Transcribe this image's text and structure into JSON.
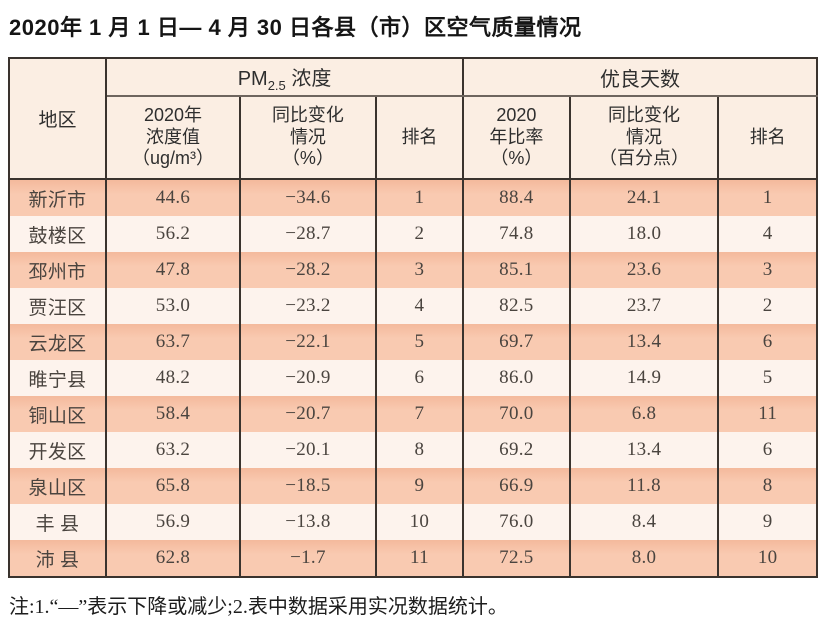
{
  "page": {
    "title": "2020年 1 月 1 日— 4 月 30 日各县（市）区空气质量情况",
    "footnote": "注:1.“—”表示下降或减少;2.表中数据采用实况数据统计。"
  },
  "table": {
    "region_header": "地区",
    "pm_group": {
      "prefix": "PM",
      "sub": "2.5",
      "suffix": " 浓度"
    },
    "good_group_label": "优良天数",
    "sub_headers": [
      "2020年\n浓度值\n（ug/m³）",
      "同比变化\n情况\n（%）",
      "排名",
      "2020\n年比率\n（%）",
      "同比变化\n情况\n（百分点）",
      "排名"
    ],
    "rows": [
      {
        "region": "新沂市",
        "pm_value": "44.6",
        "pm_change": "−34.6",
        "pm_rank": "1",
        "good_rate": "88.4",
        "good_change": "24.1",
        "good_rank": "1"
      },
      {
        "region": "鼓楼区",
        "pm_value": "56.2",
        "pm_change": "−28.7",
        "pm_rank": "2",
        "good_rate": "74.8",
        "good_change": "18.0",
        "good_rank": "4"
      },
      {
        "region": "邳州市",
        "pm_value": "47.8",
        "pm_change": "−28.2",
        "pm_rank": "3",
        "good_rate": "85.1",
        "good_change": "23.6",
        "good_rank": "3"
      },
      {
        "region": "贾汪区",
        "pm_value": "53.0",
        "pm_change": "−23.2",
        "pm_rank": "4",
        "good_rate": "82.5",
        "good_change": "23.7",
        "good_rank": "2"
      },
      {
        "region": "云龙区",
        "pm_value": "63.7",
        "pm_change": "−22.1",
        "pm_rank": "5",
        "good_rate": "69.7",
        "good_change": "13.4",
        "good_rank": "6"
      },
      {
        "region": "睢宁县",
        "pm_value": "48.2",
        "pm_change": "−20.9",
        "pm_rank": "6",
        "good_rate": "86.0",
        "good_change": "14.9",
        "good_rank": "5"
      },
      {
        "region": "铜山区",
        "pm_value": "58.4",
        "pm_change": "−20.7",
        "pm_rank": "7",
        "good_rate": "70.0",
        "good_change": "6.8",
        "good_rank": "11"
      },
      {
        "region": "开发区",
        "pm_value": "63.2",
        "pm_change": "−20.1",
        "pm_rank": "8",
        "good_rate": "69.2",
        "good_change": "13.4",
        "good_rank": "6"
      },
      {
        "region": "泉山区",
        "pm_value": "65.8",
        "pm_change": "−18.5",
        "pm_rank": "9",
        "good_rate": "66.9",
        "good_change": "11.8",
        "good_rank": "8"
      },
      {
        "region": "丰 县",
        "pm_value": "56.9",
        "pm_change": "−13.8",
        "pm_rank": "10",
        "good_rate": "76.0",
        "good_change": "8.4",
        "good_rank": "9"
      },
      {
        "region": "沛 县",
        "pm_value": "62.8",
        "pm_change": "−1.7",
        "pm_rank": "11",
        "good_rate": "72.5",
        "good_change": "8.0",
        "good_rank": "10"
      }
    ]
  },
  "colors": {
    "header_bg": "#fbeee3",
    "row_odd_bg": "#f8c7ad",
    "row_even_bg": "#fdf3ed",
    "border": "#3a332e",
    "text": "#4a443f"
  }
}
